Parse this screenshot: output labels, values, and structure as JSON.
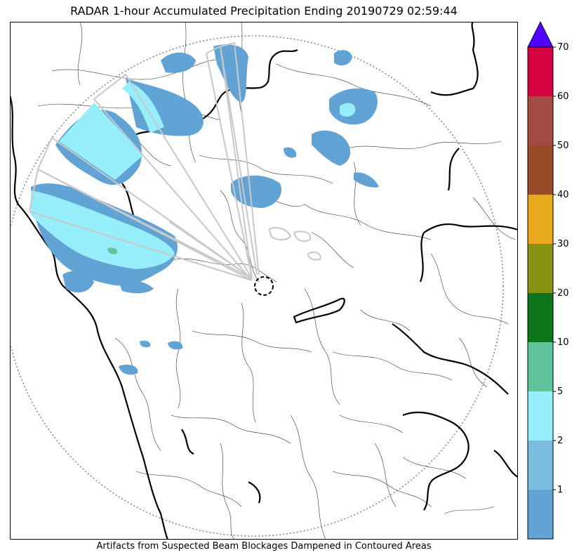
{
  "title": "RADAR 1-hour Accumulated Precipitation Ending 20190729 02:59:44",
  "caption": "Artifacts from Suspected Beam Blockages Dampened in Contoured Areas",
  "colorbar": {
    "bins": [
      {
        "from": 0,
        "to": 1,
        "color": "#62a3d6"
      },
      {
        "from": 1,
        "to": 2,
        "color": "#7abde0"
      },
      {
        "from": 2,
        "to": 5,
        "color": "#96eefb"
      },
      {
        "from": 5,
        "to": 10,
        "color": "#5ec49c"
      },
      {
        "from": 10,
        "to": 20,
        "color": "#0c7519"
      },
      {
        "from": 20,
        "to": 30,
        "color": "#8a9214"
      },
      {
        "from": 30,
        "to": 40,
        "color": "#e9a91c"
      },
      {
        "from": 40,
        "to": 50,
        "color": "#984b26"
      },
      {
        "from": 50,
        "to": 60,
        "color": "#a44a44"
      },
      {
        "from": 60,
        "to": 70,
        "color": "#d50241"
      }
    ],
    "tick_labels": [
      "1",
      "2",
      "5",
      "10",
      "20",
      "30",
      "40",
      "50",
      "60",
      "70"
    ],
    "extend_color": "#5000ff",
    "units": ""
  },
  "colors": {
    "precip_light": "#62a3d6",
    "precip_mid": "#7abde0",
    "precip_heavy": "#96eefb",
    "precip_max": "#5ec49c",
    "range_ring": "#888888",
    "blockage_contour": "#c8c8c8"
  }
}
